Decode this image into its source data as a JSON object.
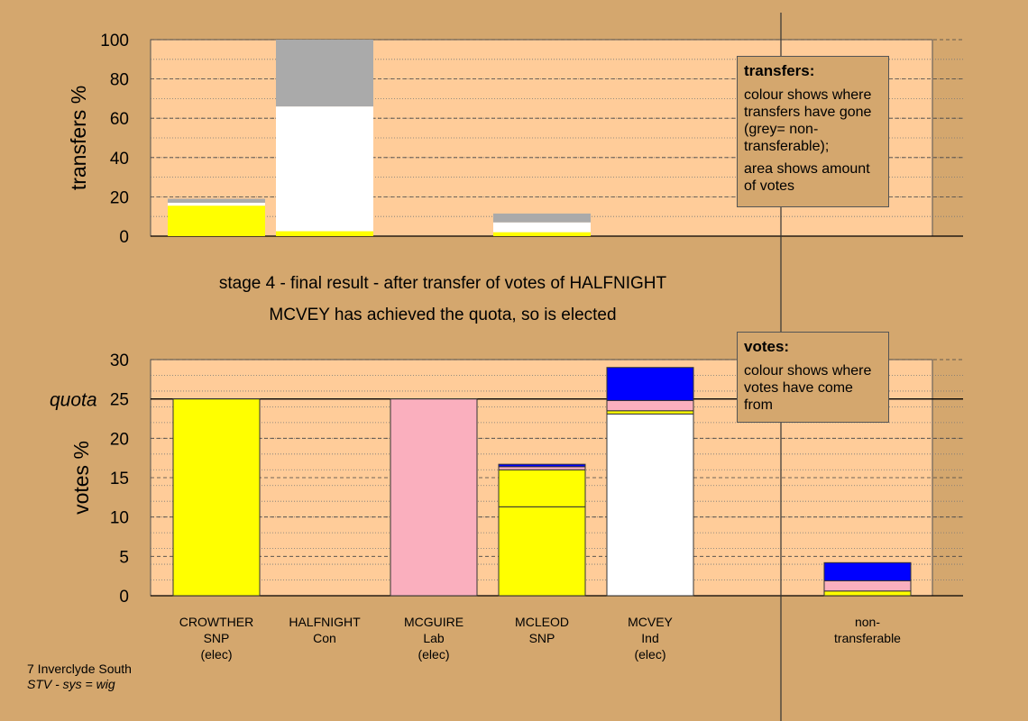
{
  "chart_data": [
    {
      "type": "bar",
      "ylabel": "transfers %",
      "ylim": [
        0,
        100
      ],
      "yticks": [
        0,
        20,
        40,
        60,
        80,
        100
      ],
      "categories": [
        "CROWTHER",
        "HALFNIGHT",
        "MCGUIRE",
        "MCLEOD",
        "MCVEY",
        "non-transferable"
      ],
      "stacks": [
        {
          "category": "CROWTHER",
          "segments": [
            {
              "color": "#FFFF00",
              "value": 15.5
            },
            {
              "color": "#FFFFFF",
              "value": 1.5
            },
            {
              "color": "#AAAAAA",
              "value": 2.0
            }
          ]
        },
        {
          "category": "HALFNIGHT",
          "segments": [
            {
              "color": "#FFFF00",
              "value": 2.5
            },
            {
              "color": "#FFFFFF",
              "value": 63.5
            },
            {
              "color": "#AAAAAA",
              "value": 34.0
            }
          ]
        },
        {
          "category": "MCLEOD",
          "segments": [
            {
              "color": "#FFFF00",
              "value": 2.0
            },
            {
              "color": "#FFFFFF",
              "value": 5.0
            },
            {
              "color": "#AAAAAA",
              "value": 4.5
            }
          ]
        }
      ]
    },
    {
      "type": "bar",
      "ylabel": "votes %",
      "ylim": [
        0,
        30
      ],
      "yticks": [
        0,
        5,
        10,
        15,
        20,
        25,
        30
      ],
      "quota": 25,
      "quota_label": "quota",
      "categories": [
        "CROWTHER",
        "HALFNIGHT",
        "MCGUIRE",
        "MCLEOD",
        "MCVEY",
        "non-transferable"
      ],
      "stacks": [
        {
          "category": "CROWTHER",
          "segments": [
            {
              "color": "#FFFF00",
              "value": 25.0
            }
          ]
        },
        {
          "category": "HALFNIGHT",
          "segments": []
        },
        {
          "category": "MCGUIRE",
          "segments": [
            {
              "color": "#FAAFBE",
              "value": 25.0
            }
          ]
        },
        {
          "category": "MCLEOD",
          "segments": [
            {
              "color": "#FFFF00",
              "value": 11.3
            },
            {
              "color": "#FFFF00",
              "value": 4.7
            },
            {
              "color": "#FAAFBE",
              "value": 0.4
            },
            {
              "color": "#0000FF",
              "value": 0.3
            }
          ]
        },
        {
          "category": "MCVEY",
          "segments": [
            {
              "color": "#FFFFFF",
              "value": 23.1
            },
            {
              "color": "#FFFF00",
              "value": 0.4
            },
            {
              "color": "#FAAFBE",
              "value": 1.3
            },
            {
              "color": "#0000FF",
              "value": 4.2
            }
          ]
        },
        {
          "category": "non-transferable",
          "segments": [
            {
              "color": "#FFFF00",
              "value": 0.6
            },
            {
              "color": "#FAAFBE",
              "value": 1.3
            },
            {
              "color": "#0000FF",
              "value": 2.3
            }
          ]
        }
      ]
    }
  ],
  "titles": {
    "line1": "stage 4 - final result - after transfer of votes of HALFNIGHT",
    "line2": "MCVEY has achieved the quota, so is elected"
  },
  "legend_transfers": {
    "heading": "transfers:",
    "text1": "colour shows where transfers have gone (grey= non-transferable);",
    "text2": "area shows amount of votes"
  },
  "legend_votes": {
    "heading": "votes:",
    "text1": "colour shows where votes have come from"
  },
  "candidates": [
    {
      "name": "CROWTHER",
      "party": "SNP",
      "status": "(elec)"
    },
    {
      "name": "HALFNIGHT",
      "party": "Con",
      "status": ""
    },
    {
      "name": "MCGUIRE",
      "party": "Lab",
      "status": "(elec)"
    },
    {
      "name": "MCLEOD",
      "party": "SNP",
      "status": ""
    },
    {
      "name": "MCVEY",
      "party": "Ind",
      "status": "(elec)"
    },
    {
      "name": "non-",
      "party": "transferable",
      "status": ""
    }
  ],
  "footer": {
    "ward": "7 Inverclyde South",
    "system": "STV - sys = wig"
  },
  "colors": {
    "background": "#D4A76E",
    "plot_area": "#FFCC99",
    "snp": "#FFFF00",
    "lab": "#FAAFBE",
    "ind": "#FFFFFF",
    "con": "#0000FF",
    "non_transferable": "#AAAAAA"
  }
}
